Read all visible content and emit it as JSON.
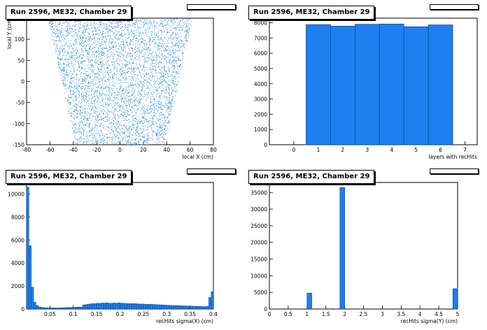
{
  "pads": [
    {
      "title": "Run 2596, ME32, Chamber 29"
    },
    {
      "title": "Run 2596, ME32, Chamber 29"
    },
    {
      "title": "Run 2596, ME32, Chamber 29"
    },
    {
      "title": "Run 2596, ME32, Chamber 29"
    }
  ],
  "colors": {
    "fill": "#1e7ff0",
    "edge": "#003a8c",
    "marker": "#2a86d6"
  },
  "chart_data": [
    {
      "type": "scatter",
      "title": "Run 2596, ME32, Chamber 29",
      "xlabel": "local X (cm)",
      "ylabel": "local Y (cm)",
      "xlim": [
        -80,
        80
      ],
      "ylim": [
        -150,
        150
      ],
      "xticks": [
        -80,
        -60,
        -40,
        -20,
        0,
        20,
        40,
        60,
        80
      ],
      "yticks": [
        -150,
        -100,
        -50,
        0,
        50,
        100,
        150
      ],
      "region": {
        "y_bottom": -150,
        "y_top": 150,
        "half_width_bottom": 38,
        "half_width_top": 62
      }
    },
    {
      "type": "bar",
      "title": "Run 2596, ME32, Chamber 29",
      "xlabel": "layers with recHits",
      "ylabel": "",
      "xlim": [
        -1,
        7.5
      ],
      "ylim": [
        0,
        8300
      ],
      "xticks": [
        0,
        1,
        2,
        3,
        4,
        5,
        6,
        7
      ],
      "yticks": [
        0,
        1000,
        2000,
        3000,
        4000,
        5000,
        6000,
        7000,
        8000
      ],
      "bins": [
        {
          "lo": 0.5,
          "hi": 1.5,
          "value": 7880
        },
        {
          "lo": 1.5,
          "hi": 2.5,
          "value": 7780
        },
        {
          "lo": 2.5,
          "hi": 3.5,
          "value": 7900
        },
        {
          "lo": 3.5,
          "hi": 4.5,
          "value": 7920
        },
        {
          "lo": 4.5,
          "hi": 5.5,
          "value": 7740
        },
        {
          "lo": 5.5,
          "hi": 6.5,
          "value": 7860
        }
      ]
    },
    {
      "type": "bar",
      "title": "Run 2596, ME32, Chamber 29",
      "xlabel": "recHits sigma(X) (cm)",
      "ylabel": "",
      "xlim": [
        0,
        0.4
      ],
      "ylim": [
        0,
        11000
      ],
      "xticks": [
        0.05,
        0.1,
        0.15,
        0.2,
        0.25,
        0.3,
        0.35,
        0.4
      ],
      "xtick_labels": [
        "0.05",
        "0.1",
        "0.15",
        "0.2",
        "0.25",
        "0.3",
        "0.35",
        "0.4"
      ],
      "yticks": [
        0,
        2000,
        4000,
        6000,
        8000,
        10000
      ],
      "bin_width": 0.005,
      "values": [
        10600,
        5500,
        1900,
        600,
        300,
        180,
        150,
        120,
        110,
        100,
        100,
        100,
        90,
        90,
        100,
        110,
        120,
        130,
        140,
        140,
        150,
        160,
        170,
        160,
        350,
        380,
        420,
        450,
        480,
        470,
        500,
        490,
        520,
        510,
        530,
        500,
        490,
        520,
        500,
        540,
        510,
        500,
        490,
        470,
        480,
        460,
        470,
        450,
        430,
        440,
        420,
        410,
        400,
        420,
        390,
        380,
        370,
        360,
        350,
        340,
        330,
        320,
        310,
        300,
        300,
        290,
        280,
        270,
        260,
        260,
        250,
        240,
        240,
        230,
        220,
        210,
        200,
        220,
        1000,
        1500
      ]
    },
    {
      "type": "bar",
      "title": "Run 2596, ME32, Chamber 29",
      "xlabel": "recHits sigma(Y) (cm)",
      "ylabel": "",
      "xlim": [
        0,
        5
      ],
      "ylim": [
        0,
        38000
      ],
      "xticks": [
        0,
        0.5,
        1,
        1.5,
        2,
        2.5,
        3,
        3.5,
        4,
        4.5,
        5
      ],
      "yticks": [
        0,
        5000,
        10000,
        15000,
        20000,
        25000,
        30000,
        35000
      ],
      "bins": [
        {
          "lo": 1.0,
          "hi": 1.125,
          "value": 4800
        },
        {
          "lo": 1.875,
          "hi": 2.0,
          "value": 36500
        },
        {
          "lo": 4.875,
          "hi": 5.0,
          "value": 6100
        }
      ]
    }
  ]
}
